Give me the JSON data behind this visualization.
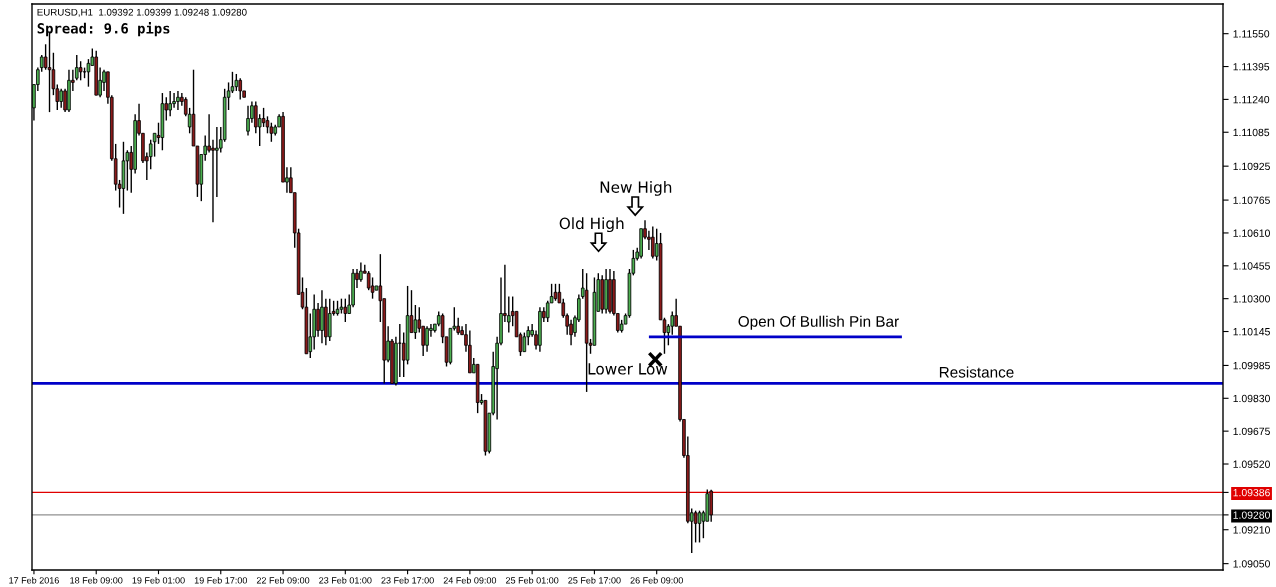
{
  "chart_data": {
    "type": "candlestick",
    "categories": [
      "17 Feb 2016",
      null,
      null,
      null,
      null,
      null,
      null,
      null,
      null,
      null,
      null,
      null,
      null,
      null,
      null,
      null,
      "18 Feb 09:00",
      null,
      null,
      null,
      null,
      null,
      null,
      null,
      null,
      null,
      null,
      null,
      null,
      null,
      null,
      null,
      "19 Feb 01:00",
      null,
      null,
      null,
      null,
      null,
      null,
      null,
      null,
      null,
      null,
      null,
      null,
      null,
      null,
      null,
      "19 Feb 17:00",
      null,
      null,
      null,
      null,
      null,
      null,
      null,
      null,
      null,
      null,
      null,
      null,
      null,
      null,
      null,
      "22 Feb 09:00",
      null,
      null,
      null,
      null,
      null,
      null,
      null,
      null,
      null,
      null,
      null,
      null,
      null,
      null,
      null,
      "23 Feb 01:00",
      null,
      null,
      null,
      null,
      null,
      null,
      null,
      null,
      null,
      null,
      null,
      null,
      null,
      null,
      null,
      "23 Feb 17:00",
      null,
      null,
      null,
      null,
      null,
      null,
      null,
      null,
      null,
      null,
      null,
      null,
      null,
      null,
      null,
      "24 Feb 09:00",
      null,
      null,
      null,
      null,
      null,
      null,
      null,
      null,
      null,
      null,
      null,
      null,
      null,
      null,
      null,
      "25 Feb 01:00",
      null,
      null,
      null,
      null,
      null,
      null,
      null,
      null,
      null,
      null,
      null,
      null,
      null,
      null,
      null,
      "25 Feb 17:00",
      null,
      null,
      null,
      null,
      null,
      null,
      null,
      null,
      null,
      null,
      null,
      null,
      null,
      null,
      null,
      "26 Feb 09:00",
      null,
      null,
      null,
      null,
      null,
      null,
      null,
      null,
      null,
      null,
      null,
      null,
      null,
      null,
      null,
      null,
      null,
      null,
      null,
      null,
      null,
      null,
      null,
      null,
      null,
      null,
      null,
      null,
      null,
      null,
      null,
      null,
      null,
      null,
      null,
      null,
      null,
      null,
      null,
      null,
      null,
      null,
      null,
      null,
      null,
      null,
      null,
      null,
      null,
      null,
      null,
      null,
      null,
      null,
      null,
      null,
      null,
      null,
      null,
      null,
      null,
      null,
      null,
      null,
      null,
      null,
      null,
      null,
      null,
      null,
      null,
      null,
      null,
      null,
      null,
      null,
      null,
      null,
      null,
      null,
      null,
      null,
      null,
      null,
      null,
      null,
      null,
      null,
      null,
      null,
      null,
      null,
      null,
      null,
      null,
      null,
      null,
      null,
      null,
      null,
      null,
      null,
      null,
      null,
      null,
      null,
      null,
      null,
      null,
      null,
      null,
      null,
      null,
      null,
      null,
      null,
      null,
      null,
      null,
      null,
      null,
      null,
      null,
      null,
      null,
      null,
      null,
      null,
      null,
      null,
      null,
      null,
      null,
      null,
      null,
      null,
      null,
      null,
      null,
      null,
      null,
      null,
      null,
      null,
      null
    ],
    "ohlc": [
      [
        1.112,
        1.1131,
        1.1114,
        1.1131
      ],
      [
        1.1131,
        1.1139,
        1.1128,
        1.1138
      ],
      [
        1.1139,
        1.1145,
        1.1137,
        1.1144
      ],
      [
        1.1144,
        1.115,
        1.1138,
        1.1139
      ],
      [
        1.1139,
        1.1156,
        1.1118,
        1.1138
      ],
      [
        1.1138,
        1.1146,
        1.1126,
        1.1129
      ],
      [
        1.1129,
        1.1131,
        1.1119,
        1.1123
      ],
      [
        1.1123,
        1.1129,
        1.112,
        1.1128
      ],
      [
        1.1128,
        1.1129,
        1.1118,
        1.1119
      ],
      [
        1.1119,
        1.1138,
        1.1118,
        1.1133
      ],
      [
        1.1133,
        1.1138,
        1.1128,
        1.1132
      ],
      [
        1.1134,
        1.1145,
        1.1133,
        1.1139
      ],
      [
        1.1139,
        1.1142,
        1.1133,
        1.1137
      ],
      [
        1.1137,
        1.1139,
        1.1134,
        1.1137
      ],
      [
        1.1137,
        1.1143,
        1.113,
        1.1141
      ],
      [
        1.114,
        1.1148,
        1.114,
        1.1144
      ],
      [
        1.1144,
        1.1147,
        1.1126,
        1.1126
      ],
      [
        1.1126,
        1.1139,
        1.1125,
        1.1133
      ],
      [
        1.1132,
        1.1138,
        1.1128,
        1.1137
      ],
      [
        1.1137,
        1.1137,
        1.1122,
        1.1125
      ],
      [
        1.1125,
        1.1126,
        1.1095,
        1.1096
      ],
      [
        1.1096,
        1.1103,
        1.1081,
        1.1084
      ],
      [
        1.1084,
        1.1086,
        1.1073,
        1.1082
      ],
      [
        1.1082,
        1.1104,
        1.107,
        1.1095
      ],
      [
        1.1095,
        1.11,
        1.1081,
        1.1099
      ],
      [
        1.1099,
        1.1102,
        1.108,
        1.1091
      ],
      [
        1.1091,
        1.1117,
        1.1089,
        1.1114
      ],
      [
        1.1114,
        1.1122,
        1.1107,
        1.1108
      ],
      [
        1.1108,
        1.1108,
        1.1094,
        1.1095
      ],
      [
        1.1097,
        1.1099,
        1.1086,
        1.1095
      ],
      [
        1.1097,
        1.1105,
        1.1091,
        1.1103
      ],
      [
        1.1104,
        1.1108,
        1.1097,
        1.1108
      ],
      [
        1.1107,
        1.1113,
        1.1103,
        1.1106
      ],
      [
        1.1106,
        1.1127,
        1.11,
        1.1122
      ],
      [
        1.1122,
        1.1125,
        1.1114,
        1.1119
      ],
      [
        1.1119,
        1.1128,
        1.1116,
        1.1122
      ],
      [
        1.1122,
        1.1127,
        1.112,
        1.1123
      ],
      [
        1.1123,
        1.1128,
        1.1119,
        1.1125
      ],
      [
        1.1125,
        1.1127,
        1.1121,
        1.1123
      ],
      [
        1.1124,
        1.1125,
        1.1116,
        1.1117
      ],
      [
        1.1111,
        1.112,
        1.1108,
        1.1117
      ],
      [
        1.1117,
        1.1138,
        1.1102,
        1.1102
      ],
      [
        1.1102,
        1.1102,
        1.1078,
        1.1084
      ],
      [
        1.1084,
        1.1098,
        1.1076,
        1.1098
      ],
      [
        1.1098,
        1.1107,
        1.1095,
        1.1102
      ],
      [
        1.1102,
        1.1117,
        1.1099,
        1.11
      ],
      [
        1.1101,
        1.1105,
        1.1066,
        1.11
      ],
      [
        1.11,
        1.1111,
        1.1078,
        1.1101
      ],
      [
        1.1101,
        1.1111,
        1.1099,
        1.1105
      ],
      [
        1.1105,
        1.1129,
        1.1104,
        1.1125
      ],
      [
        1.1125,
        1.1132,
        1.1119,
        1.1128
      ],
      [
        1.1128,
        1.1137,
        1.1127,
        1.113
      ],
      [
        1.113,
        1.1136,
        1.1128,
        1.1133
      ],
      [
        1.1133,
        1.1134,
        1.1124,
        1.1128
      ],
      [
        1.1128,
        1.1128,
        1.1125,
        1.1125
      ],
      [
        1.1109,
        1.1121,
        1.1107,
        1.1115
      ],
      [
        1.1115,
        1.1123,
        1.1113,
        1.1121
      ],
      [
        1.1121,
        1.1123,
        1.1108,
        1.1111
      ],
      [
        1.1111,
        1.1117,
        1.1102,
        1.1115
      ],
      [
        1.1115,
        1.112,
        1.1111,
        1.1113
      ],
      [
        1.1114,
        1.1116,
        1.1108,
        1.1111
      ],
      [
        1.1111,
        1.1113,
        1.1104,
        1.1108
      ],
      [
        1.1108,
        1.1112,
        1.1107,
        1.1111
      ],
      [
        1.1111,
        1.1117,
        1.1111,
        1.1116
      ],
      [
        1.1116,
        1.1118,
        1.1085,
        1.1085
      ],
      [
        1.1085,
        1.1092,
        1.108,
        1.1087
      ],
      [
        1.1087,
        1.1092,
        1.108,
        1.108
      ],
      [
        1.108,
        1.108,
        1.1054,
        1.1061
      ],
      [
        1.1061,
        1.1063,
        1.1032,
        1.1032
      ],
      [
        1.1033,
        1.104,
        1.1025,
        1.1026
      ],
      [
        1.1026,
        1.1035,
        1.1004,
        1.1004
      ],
      [
        1.1005,
        1.1023,
        1.1002,
        1.1012
      ],
      [
        1.1012,
        1.1032,
        1.1006,
        1.1025
      ],
      [
        1.1025,
        1.1028,
        1.1012,
        1.1015
      ],
      [
        1.1015,
        1.1034,
        1.1009,
        1.1026
      ],
      [
        1.1026,
        1.103,
        1.1008,
        1.1012
      ],
      [
        1.1012,
        1.103,
        1.101,
        1.1023
      ],
      [
        1.1024,
        1.1029,
        1.1022,
        1.1023
      ],
      [
        1.1023,
        1.1029,
        1.1022,
        1.1025
      ],
      [
        1.1025,
        1.103,
        1.1023,
        1.1026
      ],
      [
        1.1026,
        1.103,
        1.1019,
        1.1023
      ],
      [
        1.1023,
        1.1032,
        1.1023,
        1.1027
      ],
      [
        1.1027,
        1.1044,
        1.1026,
        1.1042
      ],
      [
        1.1042,
        1.1044,
        1.1035,
        1.1039
      ],
      [
        1.1039,
        1.1047,
        1.1038,
        1.1043
      ],
      [
        1.1043,
        1.1046,
        1.1042,
        1.1042
      ],
      [
        1.1042,
        1.1043,
        1.1034,
        1.1035
      ],
      [
        1.1036,
        1.104,
        1.103,
        1.1033
      ],
      [
        1.1034,
        1.1036,
        1.1034,
        1.1036
      ],
      [
        1.1036,
        1.1051,
        1.1019,
        1.1029
      ],
      [
        1.103,
        1.103,
        1.099,
        1.1001
      ],
      [
        1.1001,
        1.1017,
        1.1,
        1.101
      ],
      [
        1.101,
        1.1011,
        1.099,
        1.099
      ],
      [
        1.099,
        1.1012,
        1.0989,
        1.1009
      ],
      [
        1.1009,
        1.1018,
        1.0993,
        1.1009
      ],
      [
        1.1009,
        1.1014,
        1.0993,
        1.1001
      ],
      [
        1.1001,
        1.1036,
        1.0999,
        1.1022
      ],
      [
        1.1022,
        1.1034,
        1.1014,
        1.1014
      ],
      [
        1.1014,
        1.1027,
        1.1011,
        1.102
      ],
      [
        1.102,
        1.1026,
        1.1014,
        1.1016
      ],
      [
        1.1017,
        1.1017,
        1.1003,
        1.1008
      ],
      [
        1.1008,
        1.1017,
        1.1005,
        1.1016
      ],
      [
        1.1015,
        1.1018,
        1.1012,
        1.1016
      ],
      [
        1.1015,
        1.1018,
        1.1014,
        1.1018
      ],
      [
        1.1018,
        1.1024,
        1.1017,
        1.1022
      ],
      [
        1.1022,
        1.1023,
        1.1009,
        1.1012
      ],
      [
        1.1012,
        1.1012,
        1.0998,
        1.1
      ],
      [
        1.1,
        1.1016,
        1.0999,
        1.1016
      ],
      [
        1.1016,
        1.1026,
        1.1015,
        1.1017
      ],
      [
        1.1017,
        1.1021,
        1.1013,
        1.1014
      ],
      [
        1.1015,
        1.1017,
        1.1013,
        1.1013
      ],
      [
        1.1013,
        1.1018,
        1.1005,
        1.1008
      ],
      [
        1.1008,
        1.1015,
        1.0995,
        1.0995
      ],
      [
        1.0995,
        1.1002,
        1.0995,
        1.0999
      ],
      [
        1.0999,
        1.0999,
        1.0976,
        1.0981
      ],
      [
        1.0981,
        1.0985,
        1.098,
        1.0982
      ],
      [
        1.0982,
        1.0982,
        1.0956,
        1.0958
      ],
      [
        1.0958,
        1.0976,
        1.0957,
        1.0976
      ],
      [
        1.0976,
        1.1005,
        1.0975,
        1.0998
      ],
      [
        1.0997,
        1.1012,
        1.0973,
        1.1009
      ],
      [
        1.1009,
        1.104,
        1.1008,
        1.1023
      ],
      [
        1.1023,
        1.1046,
        1.1019,
        1.1022
      ],
      [
        1.1019,
        1.1031,
        1.1014,
        1.1022
      ],
      [
        1.1024,
        1.1031,
        1.1017,
        1.1022
      ],
      [
        1.1024,
        1.1024,
        1.1012,
        1.1012
      ],
      [
        1.1013,
        1.1014,
        1.1003,
        1.1005
      ],
      [
        1.1005,
        1.1014,
        1.1005,
        1.1012
      ],
      [
        1.1012,
        1.1017,
        1.1008,
        1.1015
      ],
      [
        1.1013,
        1.1018,
        1.1012,
        1.1015
      ],
      [
        1.1013,
        1.1015,
        1.1006,
        1.1008
      ],
      [
        1.1008,
        1.1026,
        1.1005,
        1.1024
      ],
      [
        1.1024,
        1.1026,
        1.1019,
        1.1021
      ],
      [
        1.1021,
        1.1029,
        1.1019,
        1.1028
      ],
      [
        1.1028,
        1.1037,
        1.1028,
        1.1031
      ],
      [
        1.1033,
        1.1037,
        1.1029,
        1.103
      ],
      [
        1.1033,
        1.1037,
        1.1028,
        1.1028
      ],
      [
        1.1028,
        1.103,
        1.1021,
        1.1022
      ],
      [
        1.1022,
        1.1023,
        1.1013,
        1.1017
      ],
      [
        1.1018,
        1.102,
        1.1008,
        1.1013
      ],
      [
        1.1014,
        1.1022,
        1.1012,
        1.1021
      ],
      [
        1.102,
        1.1032,
        1.1019,
        1.103
      ],
      [
        1.1031,
        1.1044,
        1.103,
        1.1035
      ],
      [
        1.1034,
        1.1042,
        1.0986,
        1.1009
      ],
      [
        1.1009,
        1.1011,
        1.1004,
        1.1008
      ],
      [
        1.1008,
        1.104,
        1.1008,
        1.1033
      ],
      [
        1.1024,
        1.1042,
        1.1024,
        1.1039
      ],
      [
        1.1039,
        1.1041,
        1.1023,
        1.1025
      ],
      [
        1.1025,
        1.1044,
        1.1023,
        1.1039
      ],
      [
        1.1039,
        1.1044,
        1.1023,
        1.1024
      ],
      [
        1.1039,
        1.1043,
        1.1022,
        1.1023
      ],
      [
        1.1023,
        1.1023,
        1.1014,
        1.1015
      ],
      [
        1.1015,
        1.102,
        1.1014,
        1.1018
      ],
      [
        1.1018,
        1.1023,
        1.1018,
        1.1022
      ],
      [
        1.1022,
        1.1044,
        1.1021,
        1.1042
      ],
      [
        1.1042,
        1.1053,
        1.1041,
        1.1049
      ],
      [
        1.1049,
        1.1054,
        1.1048,
        1.1052
      ],
      [
        1.105,
        1.1063,
        1.1049,
        1.1063
      ],
      [
        1.1063,
        1.1067,
        1.1058,
        1.1059
      ],
      [
        1.1059,
        1.1062,
        1.1053,
        1.1058
      ],
      [
        1.1059,
        1.1064,
        1.1049,
        1.105
      ],
      [
        1.105,
        1.1063,
        1.1048,
        1.1056
      ],
      [
        1.1056,
        1.1061,
        1.102,
        1.102
      ],
      [
        1.102,
        1.1021,
        1.1004,
        1.1014
      ],
      [
        1.1014,
        1.1018,
        1.1008,
        1.1017
      ],
      [
        1.1017,
        1.1024,
        1.1013,
        1.1022
      ],
      [
        1.1022,
        1.103,
        1.1017,
        1.1017
      ],
      [
        1.1017,
        1.1017,
        1.0972,
        1.0973
      ],
      [
        1.0973,
        1.0973,
        1.0955,
        1.0956
      ],
      [
        1.0956,
        1.0965,
        1.0924,
        1.0925
      ],
      [
        1.0925,
        1.0931,
        1.091,
        1.0929
      ],
      [
        1.0929,
        1.093,
        1.0915,
        1.0924
      ],
      [
        1.0924,
        1.093,
        1.0915,
        1.0929
      ],
      [
        1.0925,
        1.093,
        1.0917,
        1.0929
      ],
      [
        1.0925,
        1.094,
        1.0925,
        1.0938
      ],
      [
        1.09392,
        1.09399,
        1.09248,
        1.0928
      ],
      null,
      null,
      null,
      null,
      null,
      null,
      null,
      null,
      null,
      null,
      null,
      null,
      null,
      null,
      null,
      null,
      null,
      null,
      null,
      null,
      null,
      null,
      null,
      null,
      null,
      null,
      null,
      null,
      null,
      null,
      null,
      null,
      null,
      null,
      null,
      null,
      null,
      null,
      null,
      null,
      null,
      null,
      null,
      null,
      null,
      null,
      null,
      null,
      null,
      null,
      null,
      null,
      null,
      null,
      null,
      null,
      null,
      null,
      null,
      null,
      null,
      null,
      null,
      null,
      null,
      null,
      null,
      null,
      null,
      null,
      null,
      null,
      null,
      null,
      null,
      null,
      null,
      null,
      null,
      null,
      null,
      null,
      null,
      null,
      null,
      null,
      null,
      null,
      null,
      null,
      null,
      null,
      null,
      null,
      null,
      null,
      null,
      null,
      null,
      null,
      null,
      null,
      null,
      null,
      null,
      null,
      null,
      null,
      null,
      null,
      null,
      null,
      null,
      null,
      null,
      null,
      null,
      null,
      null,
      null,
      null,
      null,
      null,
      null,
      null,
      null,
      null,
      null,
      null,
      null,
      null
    ],
    "series": [
      {
        "type": "line",
        "name": "Open Of Bullish Pin Bar",
        "color": "#0000c8",
        "values": [
          null,
          null,
          null,
          null,
          null,
          null,
          null,
          null,
          null,
          null,
          null,
          null,
          null,
          null,
          null,
          null,
          null,
          null,
          null,
          null,
          null,
          null,
          null,
          null,
          null,
          null,
          null,
          null,
          null,
          null,
          null,
          null,
          null,
          null,
          null,
          null,
          null,
          null,
          null,
          null,
          null,
          null,
          null,
          null,
          null,
          null,
          null,
          null,
          null,
          null,
          null,
          null,
          null,
          null,
          null,
          null,
          null,
          null,
          null,
          null,
          null,
          null,
          null,
          null,
          null,
          null,
          null,
          null,
          null,
          null,
          null,
          null,
          null,
          null,
          null,
          null,
          null,
          null,
          null,
          null,
          null,
          null,
          null,
          null,
          null,
          null,
          null,
          null,
          null,
          null,
          null,
          null,
          null,
          null,
          null,
          null,
          null,
          null,
          null,
          null,
          null,
          null,
          null,
          null,
          null,
          null,
          null,
          null,
          null,
          null,
          null,
          null,
          null,
          null,
          null,
          null,
          null,
          null,
          null,
          null,
          null,
          null,
          null,
          null,
          null,
          null,
          null,
          null,
          null,
          null,
          null,
          null,
          null,
          null,
          null,
          null,
          null,
          null,
          null,
          null,
          null,
          null,
          null,
          null,
          null,
          null,
          null,
          null,
          null,
          null,
          null,
          null,
          null,
          null,
          null,
          null,
          null,
          null,
          1.1012,
          1.1012,
          1.1012,
          1.1012,
          1.1012,
          1.1012,
          1.1012,
          1.1012,
          1.1012,
          1.1012,
          1.1012,
          1.1012,
          1.1012,
          1.1012,
          1.1012,
          1.1012,
          1.1012,
          1.1012,
          1.1012,
          1.1012,
          1.1012,
          1.1012,
          1.1012,
          1.1012,
          1.1012,
          1.1012,
          1.1012,
          1.1012,
          1.1012,
          1.1012,
          1.1012,
          1.1012,
          1.1012,
          1.1012,
          1.1012,
          1.1012,
          1.1012,
          1.1012,
          1.1012,
          1.1012,
          1.1012,
          1.1012,
          1.1012,
          1.1012,
          1.1012,
          1.1012,
          1.1012,
          1.1012,
          1.1012,
          1.1012,
          1.1012,
          1.1012,
          1.1012,
          1.1012,
          1.1012,
          1.1012,
          1.1012,
          1.1012,
          1.1012,
          1.1012,
          1.1012,
          1.1012,
          1.1012,
          1.1012,
          1.1012,
          1.1012,
          null,
          null,
          null,
          null,
          null,
          null,
          null,
          null,
          null,
          null,
          null,
          null,
          null,
          null,
          null,
          null,
          null,
          null,
          null,
          null,
          null,
          null,
          null,
          null,
          null,
          null,
          null,
          null,
          null,
          null,
          null,
          null,
          null,
          null,
          null,
          null,
          null,
          null,
          null,
          null,
          null,
          null,
          null,
          null,
          null,
          null,
          null,
          null,
          null,
          null,
          null,
          null,
          null,
          null,
          null,
          null,
          null,
          null,
          null,
          null,
          null,
          null,
          null,
          null,
          null,
          null,
          null,
          null,
          null,
          null,
          null,
          null,
          null,
          null,
          null,
          null,
          null,
          null,
          null,
          null,
          null,
          null
        ]
      }
    ],
    "ylim": [
      1.0902,
      1.1169
    ],
    "yticks": [
      {
        "value": 1.1155,
        "label": "1.11550"
      },
      {
        "value": 1.11395,
        "label": "1.11395"
      },
      {
        "value": 1.1124,
        "label": "1.11240"
      },
      {
        "value": 1.11085,
        "label": "1.11085"
      },
      {
        "value": 1.10925,
        "label": "1.10925"
      },
      {
        "value": 1.10765,
        "label": "1.10765"
      },
      {
        "value": 1.1061,
        "label": "1.10610"
      },
      {
        "value": 1.10455,
        "label": "1.10455"
      },
      {
        "value": 1.103,
        "label": "1.10300"
      },
      {
        "value": 1.10145,
        "label": "1.10145"
      },
      {
        "value": 1.09985,
        "label": "1.09985"
      },
      {
        "value": 1.0983,
        "label": "1.09830"
      },
      {
        "value": 1.09675,
        "label": "1.09675"
      },
      {
        "value": 1.0952,
        "label": "1.09520"
      },
      {
        "value": 1.09386,
        "label": "1.09386"
      },
      {
        "value": 1.0928,
        "label": "1.09280"
      },
      {
        "value": 1.0921,
        "label": "1.09210"
      },
      {
        "value": 1.0905,
        "label": "1.09050"
      }
    ],
    "ref_lines": [
      {
        "axis": "y",
        "value": 1.099,
        "label": "Resistance",
        "color": "#0000c8"
      },
      {
        "axis": "y",
        "value": 1.09386,
        "color": "#e00000"
      },
      {
        "axis": "y",
        "value": 1.0928,
        "color": "#909090"
      }
    ],
    "annotations": [
      "EURUSD,H1  1.09392 1.09399 1.09248 1.09280",
      "Spread: 9.6 pips",
      "Old High",
      "New High",
      "Lower Low"
    ],
    "grid": false,
    "legend": false
  }
}
